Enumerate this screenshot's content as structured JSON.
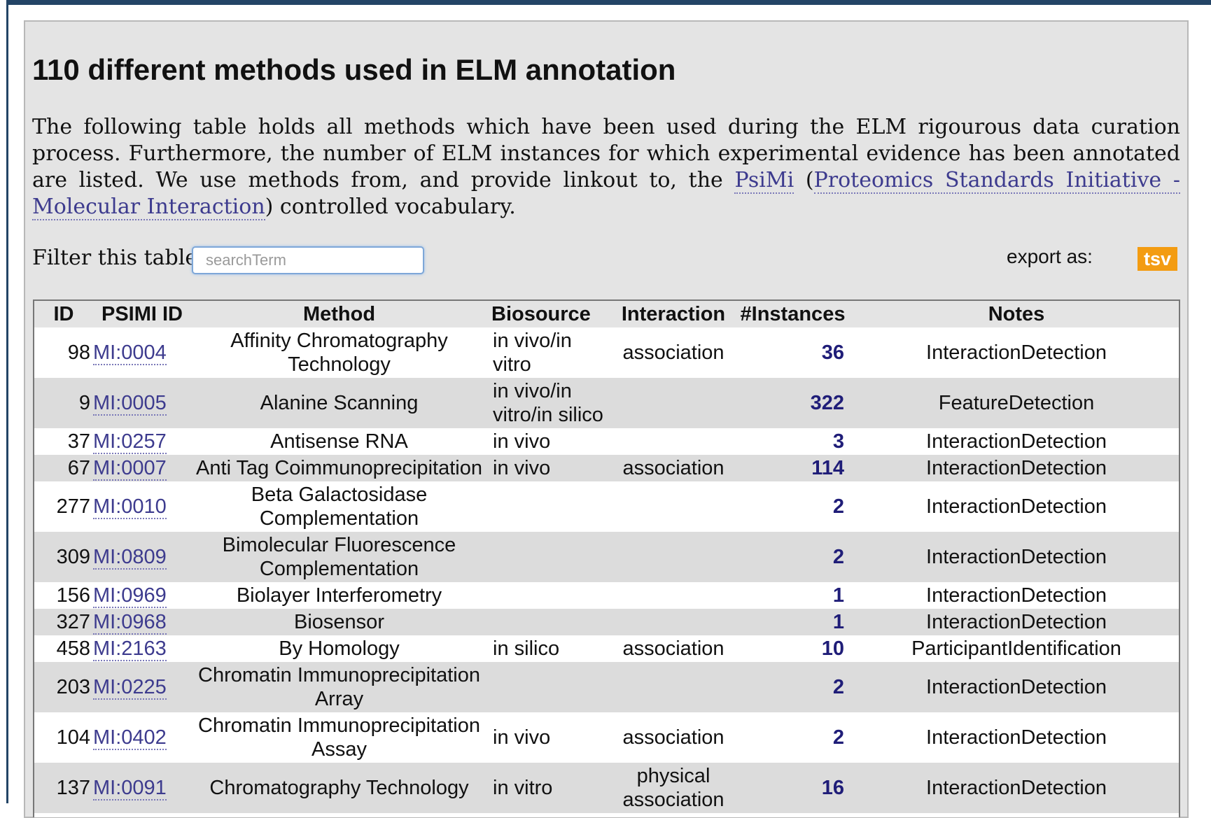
{
  "page": {
    "title": "110 different methods used in ELM annotation",
    "intro_before_link1": "The following table holds all methods which have been used during the ELM rigourous data curation process. Furthermore, the number of ELM instances for which experimental evidence has been annotated are listed. We use methods from, and provide linkout to, the ",
    "link_psimi": "PsiMi",
    "intro_between": " (",
    "link_psi_full": "Proteomics Standards Initiative - Molecular Interaction",
    "intro_after": ") controlled vocabulary."
  },
  "filter": {
    "label": "Filter this table",
    "placeholder": "searchTerm",
    "value": ""
  },
  "export": {
    "label": "export as:",
    "button": "tsv",
    "button_color": "#f39c12"
  },
  "colors": {
    "link": "#3d3b8e",
    "instances": "#1f1d78",
    "frame": "#234466"
  },
  "table": {
    "headers": [
      "ID",
      "PSIMI ID",
      "Method",
      "Biosource",
      "Interaction",
      "#Instances",
      "Notes"
    ],
    "rows": [
      {
        "id": "98",
        "psimi": "MI:0004",
        "method": "Affinity Chromatography Technology",
        "biosource": "in vivo/in vitro",
        "interaction": "association",
        "instances": "36",
        "notes": "InteractionDetection"
      },
      {
        "id": "9",
        "psimi": "MI:0005",
        "method": "Alanine Scanning",
        "biosource": "in vivo/in vitro/in silico",
        "interaction": "",
        "instances": "322",
        "notes": "FeatureDetection"
      },
      {
        "id": "37",
        "psimi": "MI:0257",
        "method": "Antisense RNA",
        "biosource": "in vivo",
        "interaction": "",
        "instances": "3",
        "notes": "InteractionDetection"
      },
      {
        "id": "67",
        "psimi": "MI:0007",
        "method": "Anti Tag Coimmunoprecipitation",
        "biosource": "in vivo",
        "interaction": "association",
        "instances": "114",
        "notes": "InteractionDetection"
      },
      {
        "id": "277",
        "psimi": "MI:0010",
        "method": "Beta Galactosidase Complementation",
        "biosource": "",
        "interaction": "",
        "instances": "2",
        "notes": "InteractionDetection"
      },
      {
        "id": "309",
        "psimi": "MI:0809",
        "method": "Bimolecular Fluorescence Complementation",
        "biosource": "",
        "interaction": "",
        "instances": "2",
        "notes": "InteractionDetection"
      },
      {
        "id": "156",
        "psimi": "MI:0969",
        "method": "Biolayer Interferometry",
        "biosource": "",
        "interaction": "",
        "instances": "1",
        "notes": "InteractionDetection"
      },
      {
        "id": "327",
        "psimi": "MI:0968",
        "method": "Biosensor",
        "biosource": "",
        "interaction": "",
        "instances": "1",
        "notes": "InteractionDetection"
      },
      {
        "id": "458",
        "psimi": "MI:2163",
        "method": "By Homology",
        "biosource": "in silico",
        "interaction": "association",
        "instances": "10",
        "notes": "ParticipantIdentification"
      },
      {
        "id": "203",
        "psimi": "MI:0225",
        "method": "Chromatin Immunoprecipitation Array",
        "biosource": "",
        "interaction": "",
        "instances": "2",
        "notes": "InteractionDetection"
      },
      {
        "id": "104",
        "psimi": "MI:0402",
        "method": "Chromatin Immunoprecipitation Assay",
        "biosource": "in vivo",
        "interaction": "association",
        "instances": "2",
        "notes": "InteractionDetection"
      },
      {
        "id": "137",
        "psimi": "MI:0091",
        "method": "Chromatography Technology",
        "biosource": "in vitro",
        "interaction": "physical association",
        "instances": "16",
        "notes": "InteractionDetection"
      }
    ]
  }
}
